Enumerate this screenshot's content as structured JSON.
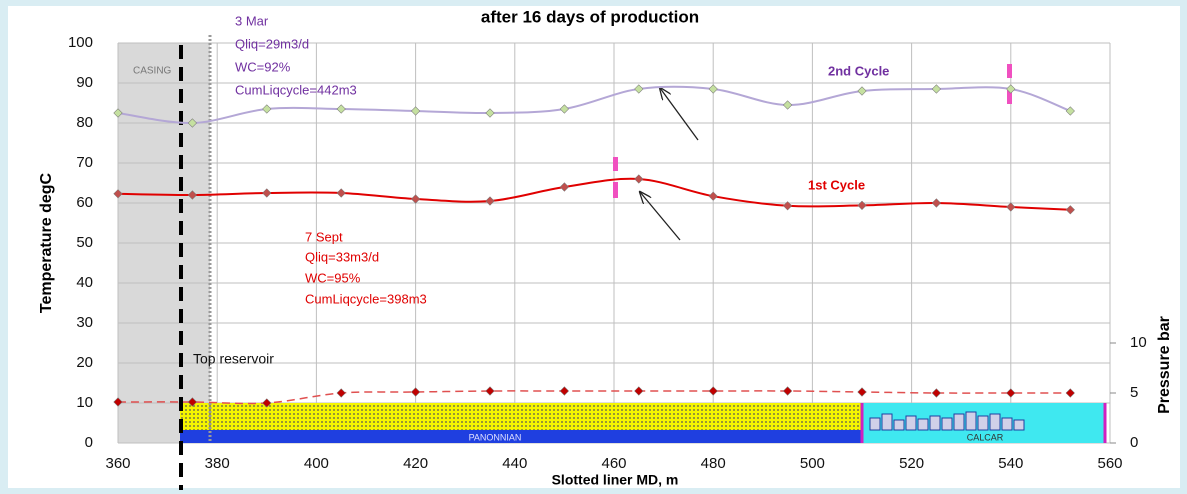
{
  "chart_data": {
    "type": "line",
    "title": "after 16 days of production",
    "x_label": "Slotted liner MD, m",
    "y_label": "Temperature degC",
    "y2_label": "Pressure bar",
    "x": [
      360,
      375,
      390,
      405,
      420,
      435,
      450,
      465,
      480,
      495,
      510,
      525,
      540,
      552
    ],
    "series": [
      {
        "name": "2nd Cycle",
        "color": "#b4a7d6",
        "marker_color": "#c5e0a0",
        "label_color": "#7030a0",
        "values": [
          82.5,
          80,
          83.5,
          83.5,
          83,
          82.5,
          83.5,
          88.5,
          88.5,
          84.5,
          88,
          88.5,
          88.5,
          83
        ]
      },
      {
        "name": "1st Cycle",
        "color": "#e00000",
        "marker_color": "#c0504d",
        "label_color": "#e00000",
        "values": [
          62.3,
          62,
          62.5,
          62.5,
          61,
          60.5,
          64,
          66,
          61.7,
          59.3,
          59.4,
          60,
          59,
          58.3
        ]
      },
      {
        "color": "#e05050",
        "marker_color": "#c00000",
        "axis": "y2",
        "dashed": true,
        "values": [
          4.1,
          4.1,
          4.0,
          5.0,
          5.1,
          5.2,
          5.2,
          5.2,
          5.2,
          5.2,
          5.1,
          5.0,
          5.0,
          5.0
        ]
      }
    ],
    "xlim": [
      360,
      560
    ],
    "xticks": [
      360,
      380,
      400,
      420,
      440,
      460,
      480,
      500,
      520,
      540,
      560
    ],
    "ylim": [
      0,
      100
    ],
    "yticks": [
      0,
      10,
      20,
      30,
      40,
      50,
      60,
      70,
      80,
      90,
      100
    ],
    "y2lim": [
      0,
      40
    ],
    "y2ticks": [
      0,
      5,
      10
    ],
    "grid": true,
    "annotations": {
      "second": [
        "3 Mar",
        "Qliq=29m3/d",
        "WC=92%",
        "CumLiqcycle=442m3"
      ],
      "first": [
        "7 Sept",
        "Qliq=33m3/d",
        "WC=95%",
        "CumLiqcycle=398m3"
      ],
      "casing": "CASING",
      "top_reservoir": "Top reservoir",
      "panonnian": "PANONNIAN",
      "calcar": "CALCAR"
    }
  }
}
